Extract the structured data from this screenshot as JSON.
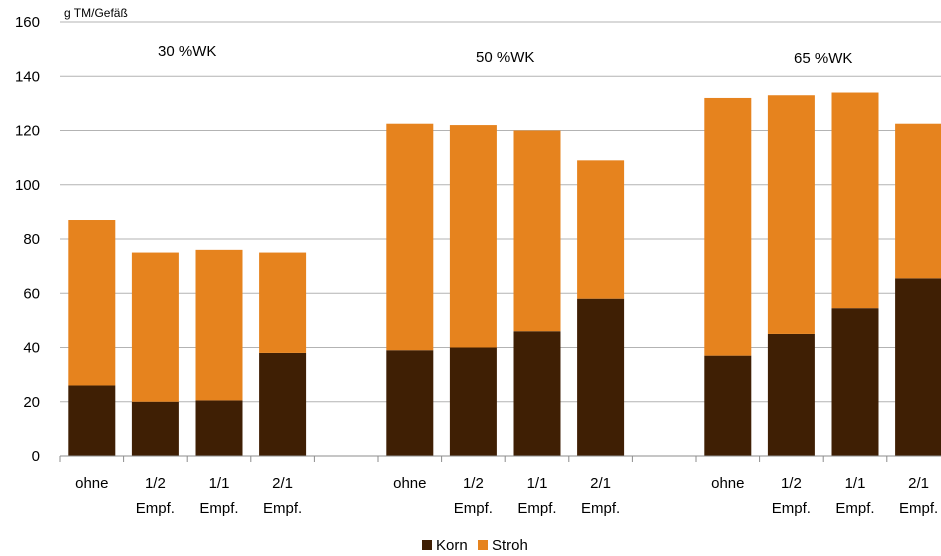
{
  "chart_data": {
    "type": "bar",
    "stacked": true,
    "unit_label": "g TM/Gefäß",
    "ylim": [
      0,
      160
    ],
    "yticks": [
      0,
      20,
      40,
      60,
      80,
      100,
      120,
      140,
      160
    ],
    "grid": true,
    "legend_position": "bottom",
    "groups": [
      {
        "label": "30 %WK",
        "categories": [
          [
            "ohne"
          ],
          [
            "1/2",
            "Empf."
          ],
          [
            "1/1",
            "Empf."
          ],
          [
            "2/1",
            "Empf."
          ]
        ],
        "korn": [
          26,
          20,
          20.5,
          38
        ],
        "stroh": [
          61,
          55,
          55.5,
          37
        ],
        "totals": [
          87,
          75,
          76,
          75
        ]
      },
      {
        "label": "50 %WK",
        "categories": [
          [
            "ohne"
          ],
          [
            "1/2",
            "Empf."
          ],
          [
            "1/1",
            "Empf."
          ],
          [
            "2/1",
            "Empf."
          ]
        ],
        "korn": [
          39,
          40,
          46,
          58
        ],
        "stroh": [
          83.5,
          82,
          74,
          51
        ],
        "totals": [
          122.5,
          122,
          120,
          109
        ]
      },
      {
        "label": "65 %WK",
        "categories": [
          [
            "ohne"
          ],
          [
            "1/2",
            "Empf."
          ],
          [
            "1/1",
            "Empf."
          ],
          [
            "2/1",
            "Empf."
          ]
        ],
        "korn": [
          37,
          45,
          54.5,
          65.5
        ],
        "stroh": [
          95,
          88,
          79.5,
          57
        ],
        "totals": [
          132,
          133,
          134,
          122.5
        ]
      }
    ],
    "series": [
      {
        "name": "Korn",
        "color": "#3f1f04"
      },
      {
        "name": "Stroh",
        "color": "#e6831e"
      }
    ]
  }
}
